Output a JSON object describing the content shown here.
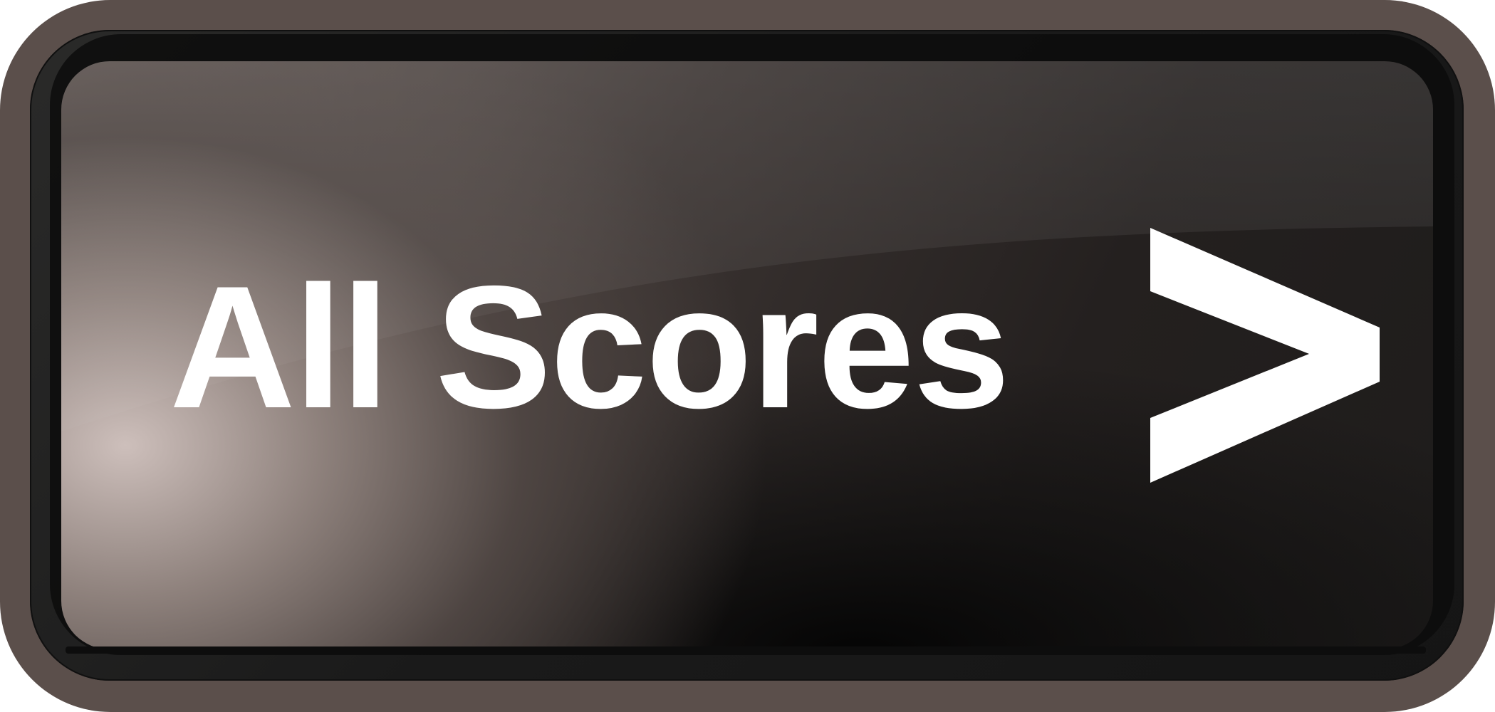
{
  "button": {
    "label": "All Scores",
    "chevron_icon": "chevron-right-icon",
    "colors": {
      "outer_ring": "#5b4f4b",
      "frame": "#1a1a1a",
      "face_highlight": "#cdbfbb",
      "face_dark": "#1e1c1b",
      "text": "#ffffff"
    }
  }
}
